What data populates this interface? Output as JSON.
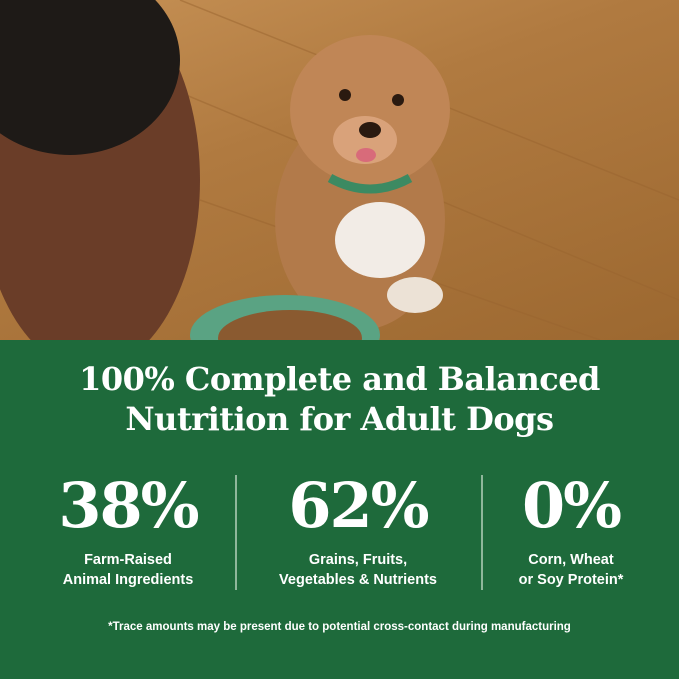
{
  "headline": {
    "line1": "100% Complete and Balanced",
    "line2": "Nutrition for Adult Dogs"
  },
  "stats": [
    {
      "value": "38%",
      "label1": "Farm-Raised",
      "label2": "Animal Ingredients"
    },
    {
      "value": "62%",
      "label1": "Grains, Fruits,",
      "label2": "Vegetables & Nutrients"
    },
    {
      "value": "0%",
      "label1": "Corn, Wheat",
      "label2": "or Soy Protein*"
    }
  ],
  "footnote": "*Trace amounts may be present due to potential cross-contact during manufacturing",
  "colors": {
    "panel": "#1e6a3b",
    "text": "#ffffff"
  }
}
